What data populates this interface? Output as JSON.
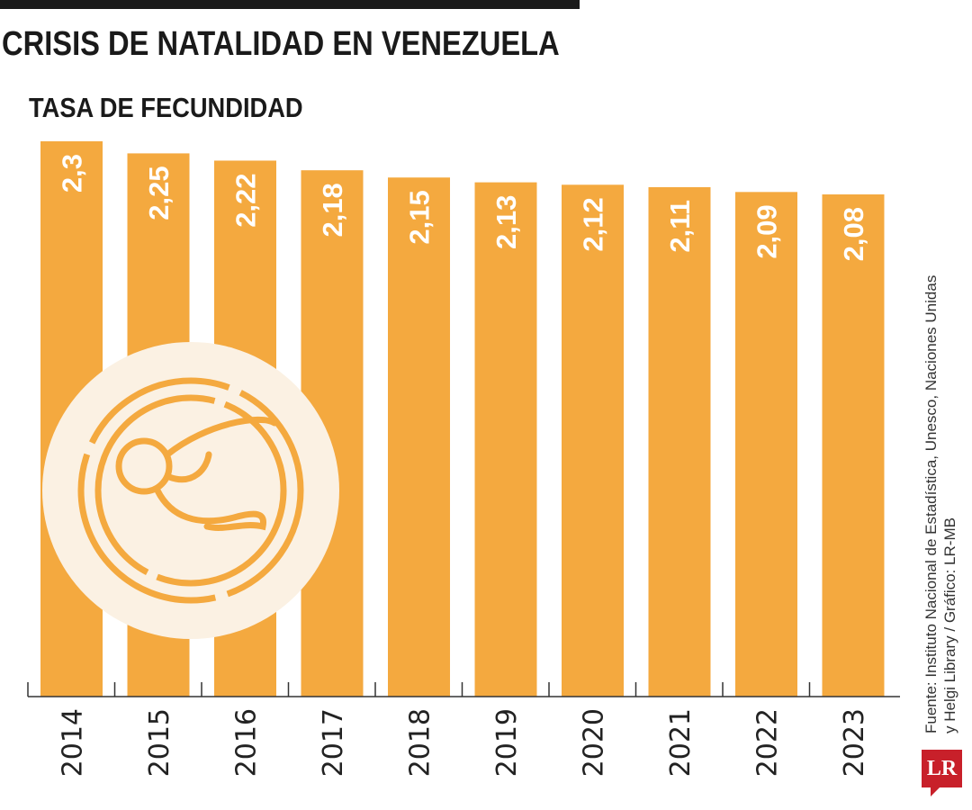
{
  "title": "CRISIS DE NATALIDAD EN VENEZUELA",
  "subtitle": "TASA DE FECUNDIDAD",
  "source_line1": "Fuente: Instituto Nacional de Estadística, Unesco, Naciones Unidas",
  "source_line2": "y Helgi Library / Gráfico: LR-MB",
  "logo": "LR",
  "chart_data": {
    "type": "bar",
    "title": "TASA DE FECUNDIDAD",
    "categories": [
      "2014",
      "2015",
      "2016",
      "2017",
      "2018",
      "2019",
      "2020",
      "2021",
      "2022",
      "2023"
    ],
    "values": [
      2.3,
      2.25,
      2.22,
      2.18,
      2.15,
      2.13,
      2.12,
      2.11,
      2.09,
      2.08
    ],
    "labels": [
      "2,3",
      "2,25",
      "2,22",
      "2,18",
      "2,15",
      "2,13",
      "2,12",
      "2,11",
      "2,09",
      "2,08"
    ],
    "ylim": [
      0,
      2.3
    ],
    "grid": false,
    "bar_color": "#f4a93f",
    "icon": "fetus-icon",
    "icon_bg": "#fbf1e3"
  }
}
